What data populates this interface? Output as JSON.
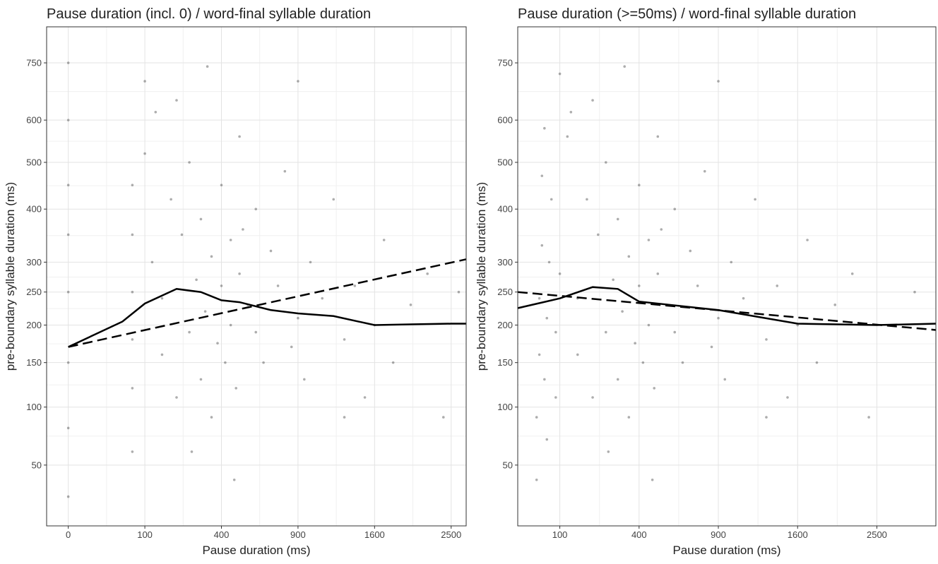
{
  "chart_data": [
    {
      "type": "scatter",
      "title": "Pause duration (incl. 0) / word-final syllable duration",
      "x_label": "Pause duration (ms)",
      "y_label": "pre-boundary syllable duration (ms)",
      "scale": "sqrt",
      "grid": true,
      "xlim": [
        -8,
        2700
      ],
      "ylim": [
        16,
        853
      ],
      "xticks": [
        0,
        100,
        400,
        900,
        1600,
        2500
      ],
      "yticks": [
        50,
        100,
        150,
        200,
        250,
        300,
        400,
        500,
        600,
        750
      ],
      "point_color": "#333333",
      "line_color": "#000000",
      "points": {
        "x": [
          0,
          0,
          0,
          0,
          0,
          0,
          0,
          0,
          70,
          70,
          70,
          70,
          70,
          70,
          100,
          100,
          120,
          150,
          150,
          180,
          200,
          200,
          220,
          250,
          250,
          280,
          300,
          300,
          320,
          350,
          350,
          380,
          400,
          400,
          420,
          450,
          450,
          480,
          500,
          500,
          550,
          600,
          600,
          650,
          700,
          750,
          800,
          850,
          900,
          950,
          1000,
          1100,
          1200,
          1300,
          1400,
          1500,
          1600,
          1700,
          1800,
          2000,
          2200,
          2400,
          2600,
          130,
          260,
          330,
          470,
          520,
          900,
          1300
        ],
        "y": [
          30,
          80,
          150,
          250,
          350,
          450,
          600,
          750,
          60,
          120,
          180,
          250,
          350,
          450,
          520,
          700,
          300,
          240,
          160,
          420,
          650,
          110,
          350,
          190,
          500,
          270,
          130,
          380,
          220,
          310,
          90,
          175,
          450,
          260,
          150,
          340,
          200,
          120,
          280,
          560,
          230,
          190,
          400,
          150,
          320,
          260,
          480,
          170,
          210,
          130,
          300,
          240,
          420,
          180,
          260,
          110,
          200,
          340,
          150,
          230,
          280,
          90,
          250,
          620,
          60,
          740,
          40,
          360,
          700,
          90
        ]
      },
      "smooth": {
        "x": [
          0,
          50,
          100,
          200,
          300,
          400,
          500,
          700,
          900,
          1200,
          1600,
          2000,
          2500,
          2700
        ],
        "y": [
          170,
          205,
          232,
          255,
          250,
          237,
          234,
          222,
          217,
          213,
          200,
          201,
          202,
          202
        ]
      },
      "linear": {
        "x": [
          0,
          2700
        ],
        "y": [
          170,
          305
        ]
      }
    },
    {
      "type": "scatter",
      "title": "Pause duration (>=50ms) / word-final syllable duration",
      "x_label": "Pause duration (ms)",
      "y_label": "pre-boundary syllable duration (ms)",
      "scale": "sqrt",
      "grid": true,
      "xlim": [
        22,
        3300
      ],
      "ylim": [
        16,
        853
      ],
      "xticks": [
        100,
        400,
        900,
        1600,
        2500
      ],
      "yticks": [
        50,
        100,
        150,
        200,
        250,
        300,
        400,
        500,
        600,
        750
      ],
      "point_color": "#333333",
      "line_color": "#000000",
      "points": {
        "x": [
          50,
          50,
          55,
          55,
          60,
          60,
          65,
          65,
          70,
          70,
          75,
          80,
          90,
          90,
          100,
          100,
          120,
          150,
          150,
          180,
          200,
          200,
          220,
          250,
          250,
          280,
          300,
          300,
          320,
          350,
          350,
          380,
          400,
          400,
          420,
          450,
          450,
          480,
          500,
          500,
          550,
          600,
          600,
          650,
          700,
          750,
          800,
          850,
          900,
          950,
          1000,
          1100,
          1200,
          1300,
          1400,
          1500,
          1600,
          1700,
          1800,
          2000,
          2200,
          2400,
          3000,
          130,
          260,
          330,
          470,
          520,
          900,
          1300
        ],
        "y": [
          40,
          90,
          160,
          240,
          330,
          470,
          580,
          130,
          70,
          210,
          300,
          420,
          110,
          190,
          720,
          280,
          560,
          240,
          160,
          420,
          650,
          110,
          350,
          190,
          500,
          270,
          130,
          380,
          220,
          310,
          90,
          175,
          450,
          260,
          150,
          340,
          200,
          120,
          280,
          560,
          230,
          190,
          400,
          150,
          320,
          260,
          480,
          170,
          210,
          130,
          300,
          240,
          420,
          180,
          260,
          110,
          200,
          340,
          150,
          230,
          280,
          90,
          250,
          620,
          60,
          740,
          40,
          360,
          700,
          90
        ]
      },
      "smooth": {
        "x": [
          22,
          100,
          200,
          300,
          400,
          900,
          1600,
          2500,
          3300
        ],
        "y": [
          225,
          240,
          258,
          255,
          235,
          222,
          202,
          200,
          202
        ]
      },
      "linear": {
        "x": [
          22,
          3300
        ],
        "y": [
          250,
          193
        ]
      }
    }
  ]
}
